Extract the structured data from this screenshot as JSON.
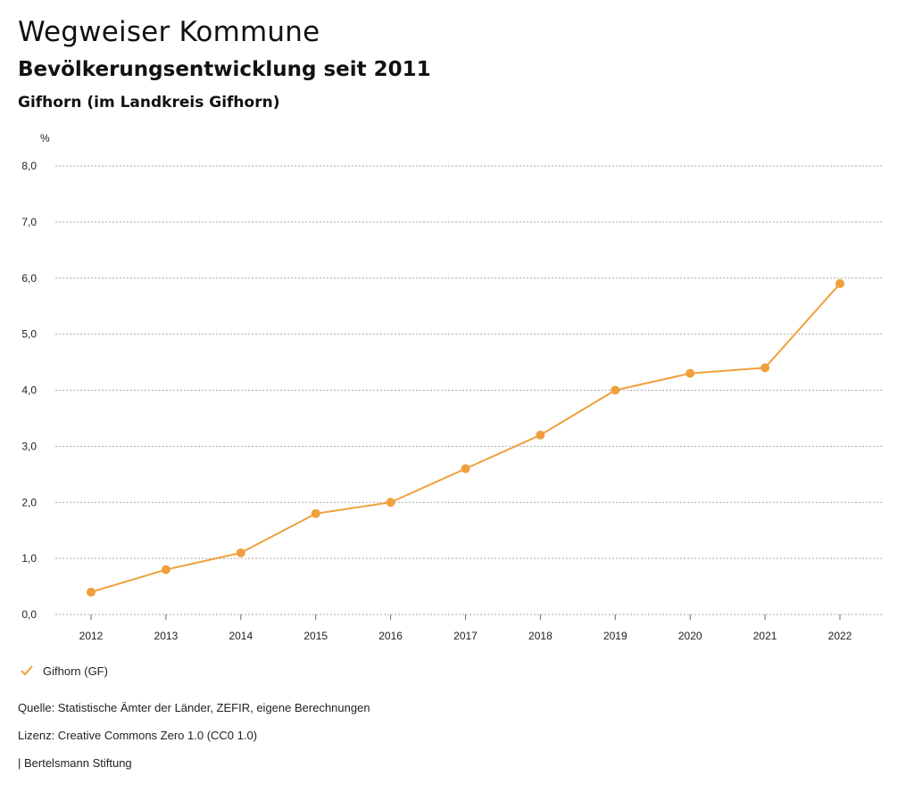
{
  "header": {
    "title": "Wegweiser Kommune",
    "subtitle": "Bevölkerungsentwicklung seit 2011",
    "region": "Gifhorn (im Landkreis Gifhorn)"
  },
  "colors": {
    "series": "#f0a03c",
    "grid": "#aaaaaa",
    "text": "#222222"
  },
  "chart_data": {
    "type": "line",
    "title": "Bevölkerungsentwicklung seit 2011",
    "xlabel": "",
    "ylabel": "%",
    "x": [
      "2012",
      "2013",
      "2014",
      "2015",
      "2016",
      "2017",
      "2018",
      "2019",
      "2020",
      "2021",
      "2022"
    ],
    "series": [
      {
        "name": "Gifhorn (GF)",
        "values": [
          0.4,
          0.8,
          1.1,
          1.8,
          2.0,
          2.6,
          3.2,
          4.0,
          4.3,
          4.4,
          5.9
        ]
      }
    ],
    "ylim": [
      0,
      8
    ],
    "yticks": [
      "0,0",
      "1,0",
      "2,0",
      "3,0",
      "4,0",
      "5,0",
      "6,0",
      "7,0",
      "8,0"
    ],
    "grid": true,
    "legend": "bottom-left"
  },
  "legend": {
    "label": "Gifhorn (GF)",
    "icon": "check-icon"
  },
  "footer": {
    "source": "Quelle: Statistische Ämter der Länder, ZEFIR, eigene Berechnungen",
    "license": "Lizenz: Creative Commons Zero 1.0 (CC0 1.0)",
    "publisher": "| Bertelsmann Stiftung"
  }
}
